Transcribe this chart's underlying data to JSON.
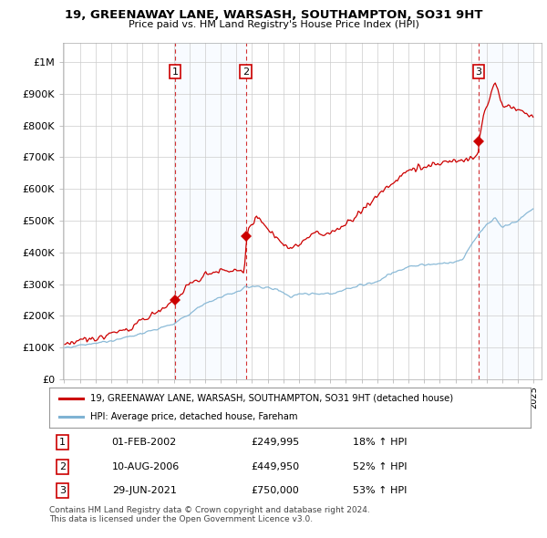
{
  "title": "19, GREENAWAY LANE, WARSASH, SOUTHAMPTON, SO31 9HT",
  "subtitle": "Price paid vs. HM Land Registry's House Price Index (HPI)",
  "ylim": [
    0,
    1050000
  ],
  "yticks": [
    0,
    100000,
    200000,
    300000,
    400000,
    500000,
    600000,
    700000,
    800000,
    900000,
    1000000
  ],
  "ytick_labels": [
    "£0",
    "£100K",
    "£200K",
    "£300K",
    "£400K",
    "£500K",
    "£600K",
    "£700K",
    "£800K",
    "£900K",
    "£1M"
  ],
  "sale_dates_year": [
    2002.08,
    2006.61,
    2021.49
  ],
  "sale_prices": [
    249995,
    449950,
    750000
  ],
  "sale_labels": [
    "1",
    "2",
    "3"
  ],
  "sale_labels_info": [
    {
      "num": "1",
      "date": "01-FEB-2002",
      "price": "£249,995",
      "hpi": "18% ↑ HPI"
    },
    {
      "num": "2",
      "date": "10-AUG-2006",
      "price": "£449,950",
      "hpi": "52% ↑ HPI"
    },
    {
      "num": "3",
      "date": "29-JUN-2021",
      "price": "£750,000",
      "hpi": "53% ↑ HPI"
    }
  ],
  "line_color_red": "#cc0000",
  "line_color_blue": "#7fb3d3",
  "shade_color": "#ddeeff",
  "background_color": "#ffffff",
  "grid_color": "#cccccc",
  "legend_label_red": "19, GREENAWAY LANE, WARSASH, SOUTHAMPTON, SO31 9HT (detached house)",
  "legend_label_blue": "HPI: Average price, detached house, Fareham",
  "footer": "Contains HM Land Registry data © Crown copyright and database right 2024.\nThis data is licensed under the Open Government Licence v3.0."
}
